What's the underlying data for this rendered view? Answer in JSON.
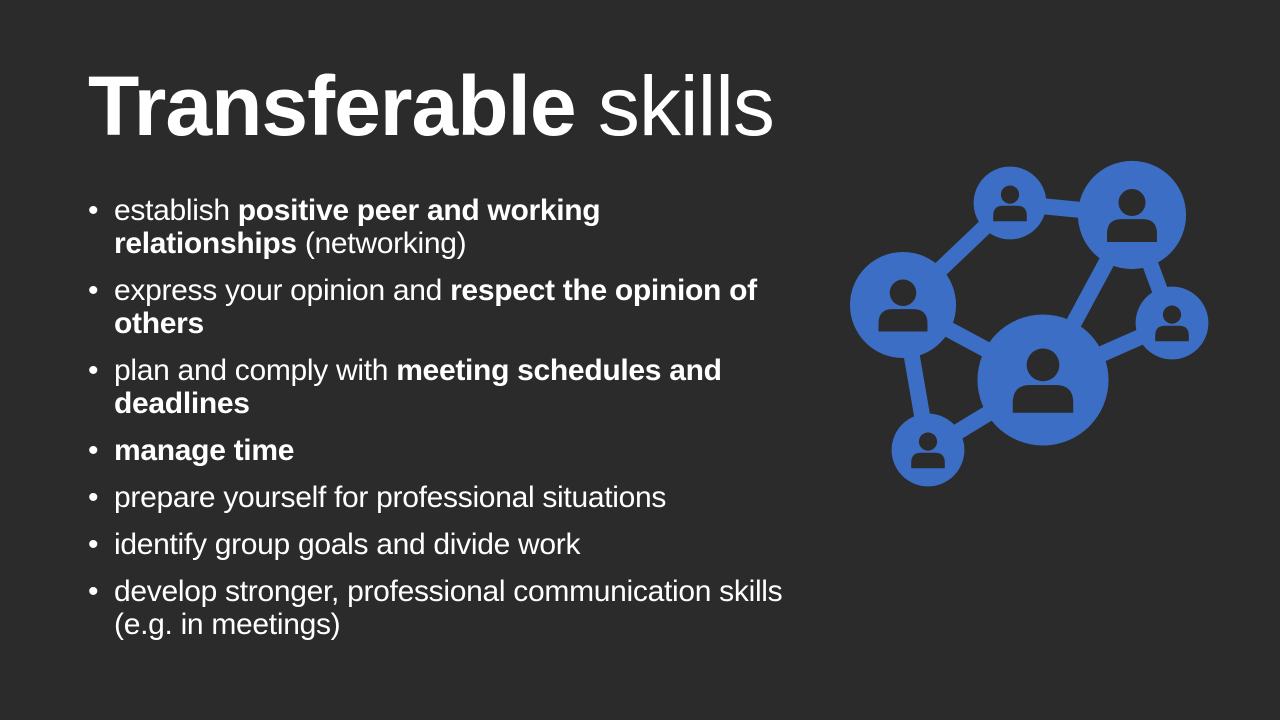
{
  "theme": {
    "background": "#2b2b2b",
    "text": "#ffffff",
    "accent": "#3b6ec4"
  },
  "title": {
    "bold": "Transferable",
    "light": "skills"
  },
  "bullets": [
    {
      "pre": "establish ",
      "bold": "positive peer and working relationships",
      "post": " (networking)"
    },
    {
      "pre": "express your opinion and ",
      "bold": "respect the opinion of others",
      "post": ""
    },
    {
      "pre": "plan and comply with ",
      "bold": "meeting schedules and deadlines",
      "post": ""
    },
    {
      "pre": "",
      "bold": "manage time",
      "post": ""
    },
    {
      "pre": "prepare yourself for professional situations",
      "bold": "",
      "post": ""
    },
    {
      "pre": "identify group goals and divide work",
      "bold": "",
      "post": ""
    },
    {
      "pre": "develop stronger, professional communication skills (e.g. in meetings)",
      "bold": "",
      "post": ""
    }
  ],
  "graphic": {
    "icon": "people-network-icon"
  }
}
